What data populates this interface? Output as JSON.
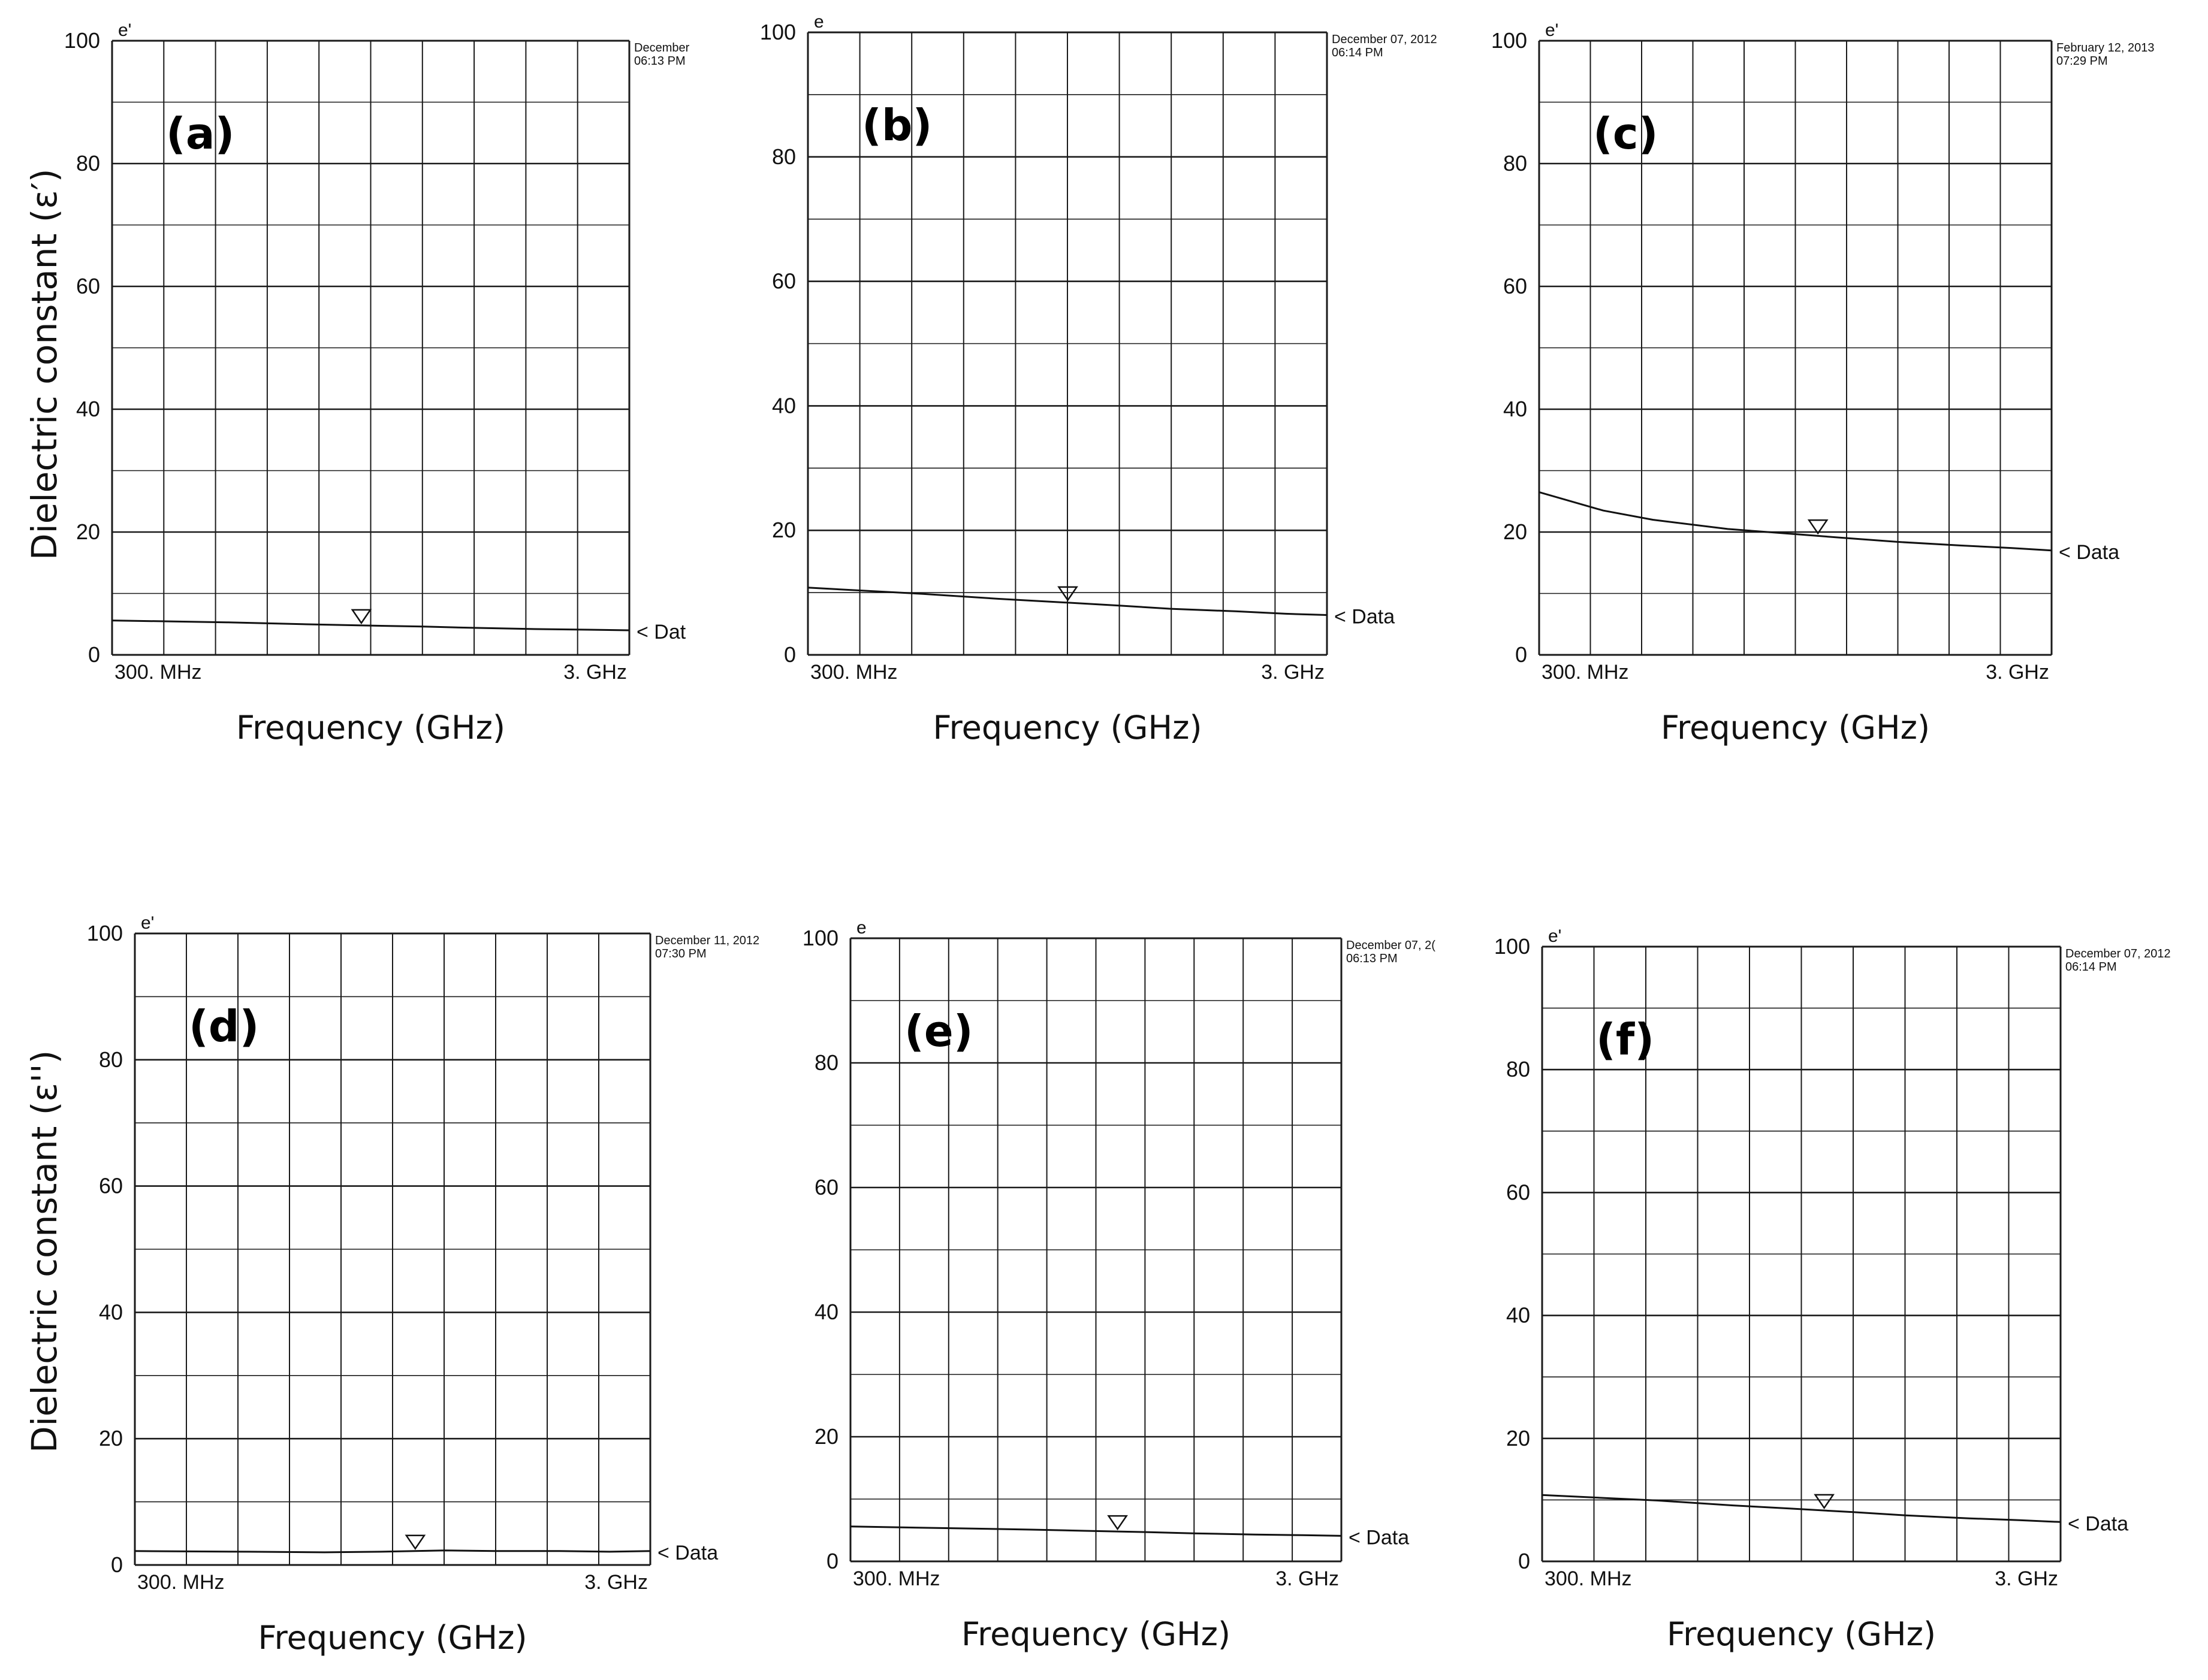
{
  "ylabel_top": "Dielectric constant (ε′)",
  "ylabel_bottom": "Dielectric constant (ε'')",
  "colors": {
    "line": "#111111",
    "grid": "#1a1a1a",
    "background": "#ffffff"
  },
  "chart_data": [
    {
      "type": "line",
      "panel_label": "(a)",
      "axis_symbol": "e'",
      "xlabel": "Frequency (GHz)",
      "x_tick_labels": [
        "300. MHz",
        "3. GHz"
      ],
      "xlim": [
        0.3,
        3.0
      ],
      "ylim": [
        0,
        100
      ],
      "y_ticks": [
        0,
        20,
        40,
        60,
        80,
        100
      ],
      "timestamp": [
        "December",
        "06:13 PM"
      ],
      "trace_label": "< Dat",
      "marker_x": 0.91,
      "series": [
        {
          "x": [
            0.3,
            0.5,
            0.7,
            0.9,
            1.2,
            1.5,
            2.0,
            2.5,
            3.0
          ],
          "y": [
            5.6,
            5.3,
            5.0,
            4.8,
            4.6,
            4.4,
            4.2,
            4.1,
            4.0
          ]
        }
      ]
    },
    {
      "type": "line",
      "panel_label": "(b)",
      "axis_symbol": "e",
      "xlabel": "Frequency (GHz)",
      "x_tick_labels": [
        "300. MHz",
        "3. GHz"
      ],
      "xlim": [
        0.3,
        3.0
      ],
      "ylim": [
        0,
        100
      ],
      "y_ticks": [
        0,
        20,
        40,
        60,
        80,
        100
      ],
      "timestamp": [
        "December 07, 2012",
        "06:14 PM"
      ],
      "trace_label": "< Data",
      "marker_x": 0.95,
      "series": [
        {
          "x": [
            0.3,
            0.5,
            0.7,
            0.9,
            1.2,
            1.5,
            2.0,
            2.5,
            3.0
          ],
          "y": [
            10.8,
            9.8,
            9.0,
            8.5,
            7.9,
            7.4,
            7.0,
            6.6,
            6.4
          ]
        }
      ]
    },
    {
      "type": "line",
      "panel_label": "(c)",
      "axis_symbol": "e'",
      "xlabel": "Frequency (GHz)",
      "x_tick_labels": [
        "300. MHz",
        "3. GHz"
      ],
      "xlim": [
        0.3,
        3.0
      ],
      "ylim": [
        0,
        100
      ],
      "y_ticks": [
        0,
        20,
        40,
        60,
        80,
        100
      ],
      "timestamp": [
        "February 12, 2013",
        "07:29 PM"
      ],
      "trace_label": "< Data",
      "marker_x": 1.05,
      "series": [
        {
          "x": [
            0.3,
            0.4,
            0.5,
            0.7,
            0.9,
            1.2,
            1.5,
            2.0,
            2.5,
            3.0
          ],
          "y": [
            26.5,
            23.5,
            22.0,
            20.5,
            19.8,
            19.0,
            18.4,
            17.8,
            17.4,
            17.0
          ]
        }
      ]
    },
    {
      "type": "line",
      "panel_label": "(d)",
      "axis_symbol": "e'",
      "xlabel": "Frequency (GHz)",
      "x_tick_labels": [
        "300. MHz",
        "3. GHz"
      ],
      "xlim": [
        0.3,
        3.0
      ],
      "ylim": [
        0,
        100
      ],
      "y_ticks": [
        0,
        20,
        40,
        60,
        80,
        100
      ],
      "timestamp": [
        "December 11, 2012",
        "07:30 PM"
      ],
      "trace_label": "< Data",
      "marker_x": 1.05,
      "series": [
        {
          "x": [
            0.3,
            0.5,
            0.7,
            0.9,
            1.2,
            1.5,
            2.0,
            2.5,
            3.0
          ],
          "y": [
            2.2,
            2.1,
            2.0,
            2.1,
            2.3,
            2.2,
            2.2,
            2.1,
            2.2
          ]
        }
      ]
    },
    {
      "type": "line",
      "panel_label": "(e)",
      "axis_symbol": "e",
      "xlabel": "Frequency (GHz)",
      "x_tick_labels": [
        "300. MHz",
        "3. GHz"
      ],
      "xlim": [
        0.3,
        3.0
      ],
      "ylim": [
        0,
        100
      ],
      "y_ticks": [
        0,
        20,
        40,
        60,
        80,
        100
      ],
      "timestamp": [
        "December 07, 2(",
        "06:13 PM"
      ],
      "trace_label": "< Data",
      "marker_x": 1.05,
      "series": [
        {
          "x": [
            0.3,
            0.5,
            0.7,
            0.9,
            1.2,
            1.5,
            2.0,
            2.5,
            3.0
          ],
          "y": [
            5.6,
            5.3,
            5.1,
            4.9,
            4.7,
            4.5,
            4.3,
            4.2,
            4.1
          ]
        }
      ]
    },
    {
      "type": "line",
      "panel_label": "(f)",
      "axis_symbol": "e'",
      "xlabel": "Frequency (GHz)",
      "x_tick_labels": [
        "300. MHz",
        "3. GHz"
      ],
      "xlim": [
        0.3,
        3.0
      ],
      "ylim": [
        0,
        100
      ],
      "y_ticks": [
        0,
        20,
        40,
        60,
        80,
        100
      ],
      "timestamp": [
        "December 07, 2012",
        "06:14 PM"
      ],
      "trace_label": "< Data",
      "marker_x": 1.05,
      "series": [
        {
          "x": [
            0.3,
            0.5,
            0.7,
            0.9,
            1.2,
            1.5,
            2.0,
            2.5,
            3.0
          ],
          "y": [
            10.8,
            9.9,
            9.1,
            8.6,
            8.0,
            7.5,
            7.0,
            6.7,
            6.4
          ]
        }
      ]
    }
  ]
}
